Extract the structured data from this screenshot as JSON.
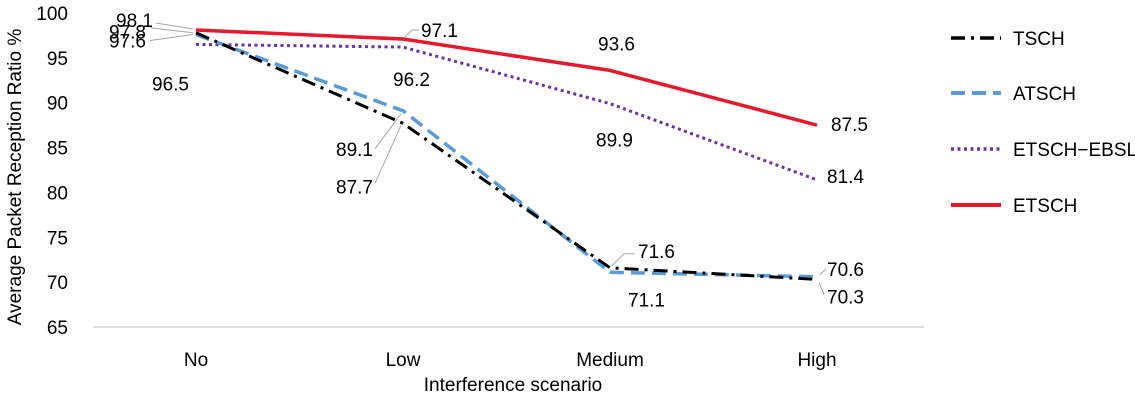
{
  "chart_data": {
    "type": "line",
    "categories": [
      "No",
      "Low",
      "Medium",
      "High"
    ],
    "xlabel": "Interference scenario",
    "ylabel": "Average Packet Reception Ratio %",
    "ylim": [
      65,
      100
    ],
    "yticks": [
      65,
      70,
      75,
      80,
      85,
      90,
      95,
      100
    ],
    "grid": false,
    "legend_position": "right",
    "series": [
      {
        "name": "TSCH",
        "values": [
          97.8,
          87.7,
          71.6,
          70.3
        ],
        "color": "#000000",
        "style": "dash-dot"
      },
      {
        "name": "ATSCH",
        "values": [
          97.6,
          89.1,
          71.1,
          70.6
        ],
        "color": "#5b9bd5",
        "style": "dashed"
      },
      {
        "name": "ETSCH−EBSL",
        "values": [
          96.5,
          96.2,
          89.9,
          81.4
        ],
        "color": "#7030a0",
        "style": "dotted"
      },
      {
        "name": "ETSCH",
        "values": [
          98.1,
          97.1,
          93.6,
          87.5
        ],
        "color": "#e8182c",
        "style": "solid"
      }
    ],
    "data_labels": [
      {
        "series": 0,
        "index": 0,
        "text": "97.8"
      },
      {
        "series": 0,
        "index": 1,
        "text": "87.7"
      },
      {
        "series": 0,
        "index": 2,
        "text": "71.6"
      },
      {
        "series": 0,
        "index": 3,
        "text": "70.3"
      },
      {
        "series": 1,
        "index": 0,
        "text": "97.6"
      },
      {
        "series": 1,
        "index": 1,
        "text": "89.1"
      },
      {
        "series": 1,
        "index": 2,
        "text": "71.1"
      },
      {
        "series": 1,
        "index": 3,
        "text": "70.6"
      },
      {
        "series": 2,
        "index": 0,
        "text": "96.5"
      },
      {
        "series": 2,
        "index": 1,
        "text": "96.2"
      },
      {
        "series": 2,
        "index": 2,
        "text": "89.9"
      },
      {
        "series": 2,
        "index": 3,
        "text": "81.4"
      },
      {
        "series": 3,
        "index": 0,
        "text": "98.1"
      },
      {
        "series": 3,
        "index": 1,
        "text": "97.1"
      },
      {
        "series": 3,
        "index": 2,
        "text": "93.6"
      },
      {
        "series": 3,
        "index": 3,
        "text": "87.5"
      }
    ]
  }
}
